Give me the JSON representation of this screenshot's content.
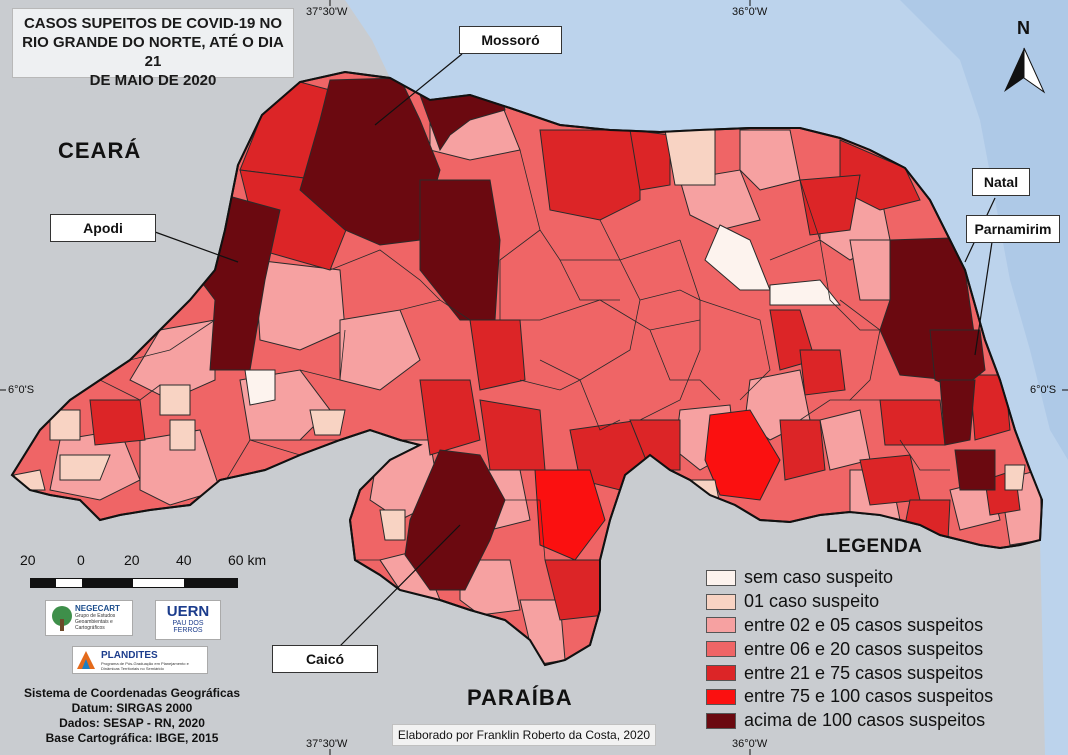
{
  "title": "CASOS SUPEITOS DE COVID-19 NO RIO GRANDE DO NORTE, ATÉ O DIA 21 DE MAIO DE 2020",
  "title_lines": [
    "CASOS SUPEITOS DE COVID-19 NO",
    "RIO GRANDE DO NORTE, ATÉ O DIA 21",
    "DE MAIO DE 2020"
  ],
  "neighbors": {
    "ceara": "CEARÁ",
    "paraiba": "PARAÍBA"
  },
  "city_labels": {
    "mossoro": "Mossoró",
    "apodi": "Apodi",
    "natal": "Natal",
    "parnamirim": "Parnamirim",
    "caico": "Caicó"
  },
  "coordinates": {
    "lon_left": "37°30'W",
    "lon_right": "36°0'W",
    "lat_left": "6°0'S",
    "lat_right": "6°0'S"
  },
  "north_arrow": "N",
  "scale": {
    "ticks": [
      "20",
      "0",
      "20",
      "40",
      "60 km"
    ]
  },
  "legend": {
    "title": "LEGENDA",
    "items": [
      {
        "label": "sem caso suspeito",
        "color": "#fdf3ee"
      },
      {
        "label": "01 caso suspeito",
        "color": "#f8d3c3"
      },
      {
        "label": "entre 02 e 05 casos suspeitos",
        "color": "#f6a1a1"
      },
      {
        "label": "entre 06 e 20 casos suspeitos",
        "color": "#ef6566"
      },
      {
        "label": "entre 21 e 75 casos suspeitos",
        "color": "#dc2527"
      },
      {
        "label": "entre 75 e 100 casos suspeitos",
        "color": "#fb1010"
      },
      {
        "label": "acima de 100 casos suspeitos",
        "color": "#6b0910"
      }
    ]
  },
  "logos": {
    "negecart_title": "NEGECART",
    "negecart_sub": "Grupo de Estudos Geoambientais e Cartográficos",
    "uern_title": "UERN",
    "uern_sub1": "PAU DOS",
    "uern_sub2": "FERROS",
    "plandites_title": "PLANDITES",
    "plandites_sub": "Programa de Pós-Graduação em Planejamento e Dinâmicas Territoriais no Semiárido"
  },
  "credits": {
    "line1": "Sistema de Coordenadas Geográficas",
    "line2": "Datum: SIRGAS 2000",
    "line3": "Dados: SESAP - RN, 2020",
    "line4": "Base Cartográfica: IBGE, 2015"
  },
  "author": "Elaborado por Franklin Roberto da Costa, 2020",
  "colors": {
    "ocean": "#bcd3ec",
    "land_outside": "#c9ccd0",
    "border": "#222222"
  }
}
